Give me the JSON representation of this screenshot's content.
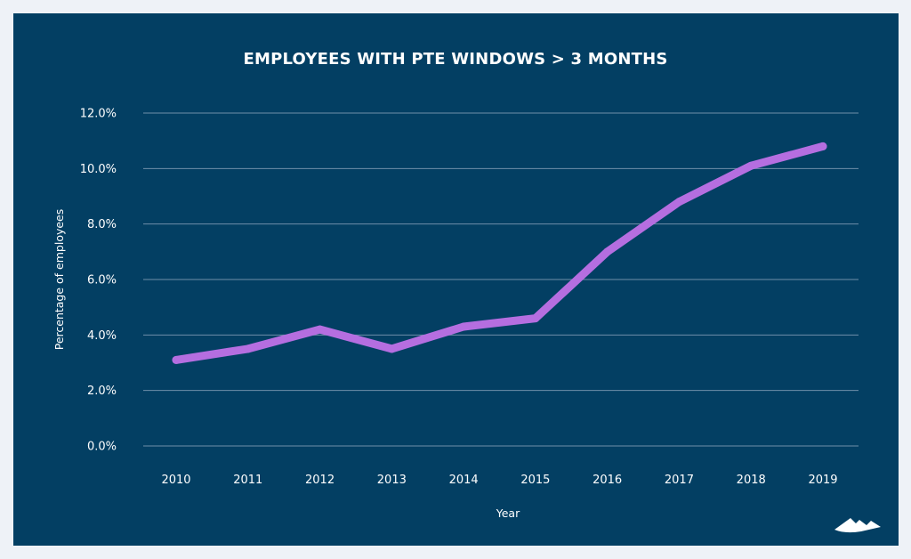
{
  "chart_data": {
    "type": "line",
    "title": "EMPLOYEES WITH PTE WINDOWS > 3 MONTHS",
    "xlabel": "Year",
    "ylabel": "Percentage of employees",
    "x": [
      "2010",
      "2011",
      "2012",
      "2013",
      "2014",
      "2015",
      "2016",
      "2017",
      "2018",
      "2019"
    ],
    "series": [
      {
        "values": [
          3.1,
          3.5,
          4.2,
          3.5,
          4.3,
          4.6,
          7.0,
          8.8,
          10.1,
          10.8
        ]
      }
    ],
    "ylim": [
      0,
      12
    ],
    "yticks": [
      "0.0%",
      "2.0%",
      "4.0%",
      "6.0%",
      "8.0%",
      "10.0%",
      "12.0%"
    ],
    "grid": true,
    "colors": {
      "background": "#033f63",
      "page": "#eef2f7",
      "line": "#b56ee0",
      "grid": "#6f8fa8",
      "text": "#ffffff"
    }
  },
  "logo": {
    "icon": "mountain-logo-icon"
  }
}
